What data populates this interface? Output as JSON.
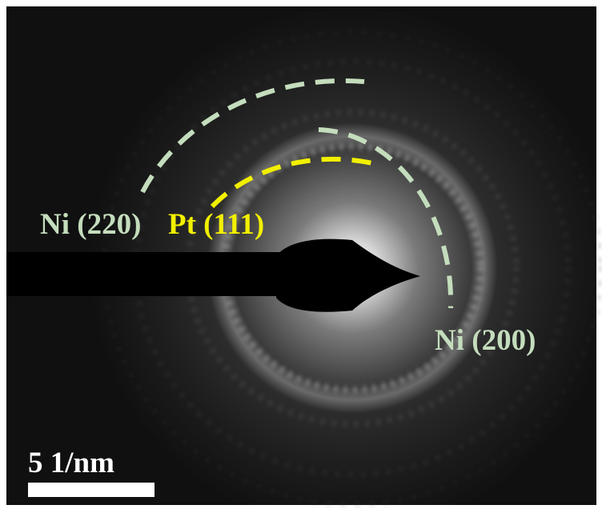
{
  "labels": {
    "ni_220": "Ni (220)",
    "pt_111": "Pt (111)",
    "ni_200": "Ni (200)"
  },
  "scale_bar": {
    "label": "5 1/nm"
  }
}
